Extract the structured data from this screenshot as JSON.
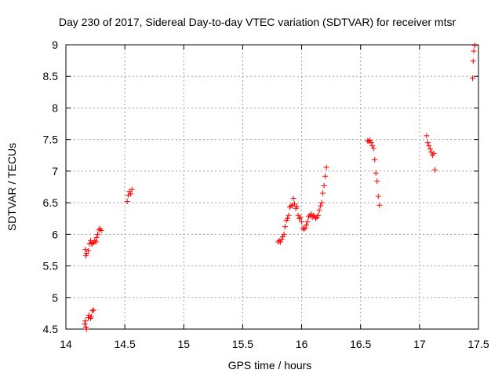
{
  "chart_data": {
    "type": "scatter",
    "title": "Day 230 of 2017, Sidereal Day-to-day VTEC variation (SDTVAR) for receiver mtsr",
    "xlabel": "GPS time / hours",
    "ylabel": "SDTVAR / TECUs",
    "xlim": [
      14,
      17.5
    ],
    "ylim": [
      4.5,
      9
    ],
    "xticks": [
      "14",
      "14.5",
      "15",
      "15.5",
      "16",
      "16.5",
      "17",
      "17.5"
    ],
    "yticks": [
      "4.5",
      "5",
      "5.5",
      "6",
      "6.5",
      "7",
      "7.5",
      "8",
      "8.5",
      "9"
    ],
    "grid": true,
    "marker": "+",
    "series": [
      {
        "name": "SDTVAR",
        "color": "#ff0000",
        "points": [
          [
            14.16,
            4.58
          ],
          [
            14.165,
            4.63
          ],
          [
            14.17,
            4.53
          ],
          [
            14.175,
            4.5
          ],
          [
            14.19,
            4.68
          ],
          [
            14.195,
            4.72
          ],
          [
            14.21,
            4.67
          ],
          [
            14.215,
            4.7
          ],
          [
            14.225,
            4.79
          ],
          [
            14.235,
            4.8
          ],
          [
            14.165,
            5.76
          ],
          [
            14.17,
            5.66
          ],
          [
            14.175,
            5.7
          ],
          [
            14.19,
            5.74
          ],
          [
            14.2,
            5.85
          ],
          [
            14.21,
            5.9
          ],
          [
            14.215,
            5.86
          ],
          [
            14.225,
            5.85
          ],
          [
            14.235,
            5.87
          ],
          [
            14.245,
            5.9
          ],
          [
            14.255,
            5.88
          ],
          [
            14.26,
            5.95
          ],
          [
            14.27,
            6.0
          ],
          [
            14.28,
            6.07
          ],
          [
            14.29,
            6.09
          ],
          [
            14.3,
            6.06
          ],
          [
            14.52,
            6.52
          ],
          [
            14.53,
            6.62
          ],
          [
            14.54,
            6.68
          ],
          [
            14.55,
            6.64
          ],
          [
            14.56,
            6.71
          ],
          [
            15.8,
            5.88
          ],
          [
            15.81,
            5.9
          ],
          [
            15.82,
            5.88
          ],
          [
            15.83,
            5.92
          ],
          [
            15.84,
            5.96
          ],
          [
            15.85,
            6.0
          ],
          [
            15.86,
            6.12
          ],
          [
            15.87,
            6.22
          ],
          [
            15.88,
            6.25
          ],
          [
            15.89,
            6.3
          ],
          [
            15.9,
            6.43
          ],
          [
            15.91,
            6.45
          ],
          [
            15.92,
            6.46
          ],
          [
            15.93,
            6.57
          ],
          [
            15.94,
            6.48
          ],
          [
            15.95,
            6.41
          ],
          [
            15.96,
            6.44
          ],
          [
            15.97,
            6.3
          ],
          [
            15.98,
            6.25
          ],
          [
            15.99,
            6.27
          ],
          [
            16.0,
            6.2
          ],
          [
            16.01,
            6.1
          ],
          [
            16.02,
            6.08
          ],
          [
            16.03,
            6.1
          ],
          [
            16.04,
            6.15
          ],
          [
            16.05,
            6.2
          ],
          [
            16.06,
            6.28
          ],
          [
            16.07,
            6.3
          ],
          [
            16.08,
            6.32
          ],
          [
            16.09,
            6.27
          ],
          [
            16.1,
            6.3
          ],
          [
            16.11,
            6.28
          ],
          [
            16.12,
            6.25
          ],
          [
            16.13,
            6.27
          ],
          [
            16.14,
            6.3
          ],
          [
            16.15,
            6.38
          ],
          [
            16.16,
            6.45
          ],
          [
            16.17,
            6.5
          ],
          [
            16.18,
            6.65
          ],
          [
            16.19,
            6.77
          ],
          [
            16.2,
            6.92
          ],
          [
            16.21,
            7.06
          ],
          [
            16.56,
            7.48
          ],
          [
            16.57,
            7.47
          ],
          [
            16.58,
            7.49
          ],
          [
            16.59,
            7.45
          ],
          [
            16.6,
            7.4
          ],
          [
            16.61,
            7.36
          ],
          [
            16.62,
            7.18
          ],
          [
            16.63,
            6.97
          ],
          [
            16.64,
            6.84
          ],
          [
            16.65,
            6.6
          ],
          [
            16.66,
            6.46
          ],
          [
            17.06,
            7.56
          ],
          [
            17.07,
            7.45
          ],
          [
            17.08,
            7.4
          ],
          [
            17.09,
            7.35
          ],
          [
            17.1,
            7.3
          ],
          [
            17.11,
            7.25
          ],
          [
            17.12,
            7.28
          ],
          [
            17.13,
            7.02
          ],
          [
            17.45,
            8.47
          ],
          [
            17.455,
            8.74
          ],
          [
            17.46,
            8.9
          ],
          [
            17.47,
            8.99
          ]
        ]
      }
    ]
  }
}
